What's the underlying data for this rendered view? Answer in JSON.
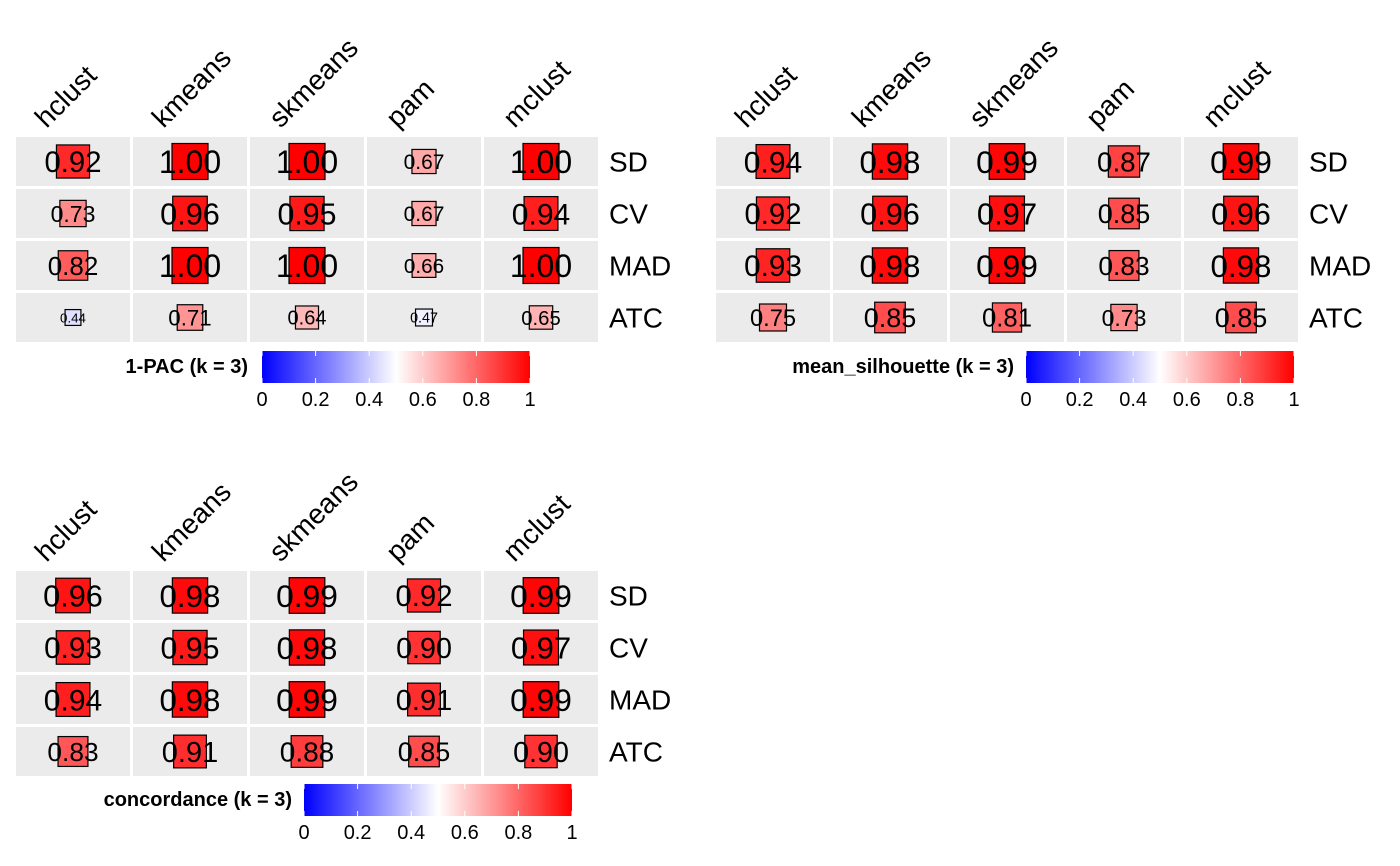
{
  "colors": {
    "low": "#0000ff",
    "mid": "#ffffff",
    "high": "#ff0000",
    "cell_bg": "#ebebeb",
    "grid": "#ffffff",
    "text": "#000000"
  },
  "chart_data": [
    {
      "type": "heatmap",
      "legend_title": "1-PAC (k = 3)",
      "columns": [
        "hclust",
        "kmeans",
        "skmeans",
        "pam",
        "mclust"
      ],
      "rows": [
        "SD",
        "CV",
        "MAD",
        "ATC"
      ],
      "values": [
        [
          0.92,
          1.0,
          1.0,
          0.67,
          1.0
        ],
        [
          0.73,
          0.96,
          0.95,
          0.67,
          0.94
        ],
        [
          0.82,
          1.0,
          1.0,
          0.66,
          1.0
        ],
        [
          0.44,
          0.71,
          0.64,
          0.47,
          0.65
        ]
      ],
      "labels": [
        [
          "0.92",
          "1.00",
          "1.00",
          "0.67",
          "1.00"
        ],
        [
          "0.73",
          "0.96",
          "0.95",
          "0.67",
          "0.94"
        ],
        [
          "0.82",
          "1.00",
          "1.00",
          "0.66",
          "1.00"
        ],
        [
          "0.44",
          "0.71",
          "0.64",
          "0.47",
          "0.65"
        ]
      ],
      "color_range": [
        0,
        1
      ],
      "legend_ticks": [
        "0",
        "0.2",
        "0.4",
        "0.6",
        "0.8",
        "1"
      ]
    },
    {
      "type": "heatmap",
      "legend_title": "mean_silhouette (k = 3)",
      "columns": [
        "hclust",
        "kmeans",
        "skmeans",
        "pam",
        "mclust"
      ],
      "rows": [
        "SD",
        "CV",
        "MAD",
        "ATC"
      ],
      "values": [
        [
          0.94,
          0.98,
          0.99,
          0.87,
          0.99
        ],
        [
          0.92,
          0.96,
          0.97,
          0.85,
          0.96
        ],
        [
          0.93,
          0.98,
          0.99,
          0.83,
          0.98
        ],
        [
          0.75,
          0.85,
          0.81,
          0.73,
          0.85
        ]
      ],
      "labels": [
        [
          "0.94",
          "0.98",
          "0.99",
          "0.87",
          "0.99"
        ],
        [
          "0.92",
          "0.96",
          "0.97",
          "0.85",
          "0.96"
        ],
        [
          "0.93",
          "0.98",
          "0.99",
          "0.83",
          "0.98"
        ],
        [
          "0.75",
          "0.85",
          "0.81",
          "0.73",
          "0.85"
        ]
      ],
      "color_range": [
        0,
        1
      ],
      "legend_ticks": [
        "0",
        "0.2",
        "0.4",
        "0.6",
        "0.8",
        "1"
      ]
    },
    {
      "type": "heatmap",
      "legend_title": "concordance (k = 3)",
      "columns": [
        "hclust",
        "kmeans",
        "skmeans",
        "pam",
        "mclust"
      ],
      "rows": [
        "SD",
        "CV",
        "MAD",
        "ATC"
      ],
      "values": [
        [
          0.96,
          0.98,
          0.99,
          0.92,
          0.99
        ],
        [
          0.93,
          0.95,
          0.98,
          0.9,
          0.97
        ],
        [
          0.94,
          0.98,
          0.99,
          0.91,
          0.99
        ],
        [
          0.83,
          0.91,
          0.88,
          0.85,
          0.9
        ]
      ],
      "labels": [
        [
          "0.96",
          "0.98",
          "0.99",
          "0.92",
          "0.99"
        ],
        [
          "0.93",
          "0.95",
          "0.98",
          "0.90",
          "0.97"
        ],
        [
          "0.94",
          "0.98",
          "0.99",
          "0.91",
          "0.99"
        ],
        [
          "0.83",
          "0.91",
          "0.88",
          "0.85",
          "0.90"
        ]
      ],
      "color_range": [
        0,
        1
      ],
      "legend_ticks": [
        "0",
        "0.2",
        "0.4",
        "0.6",
        "0.8",
        "1"
      ]
    }
  ]
}
